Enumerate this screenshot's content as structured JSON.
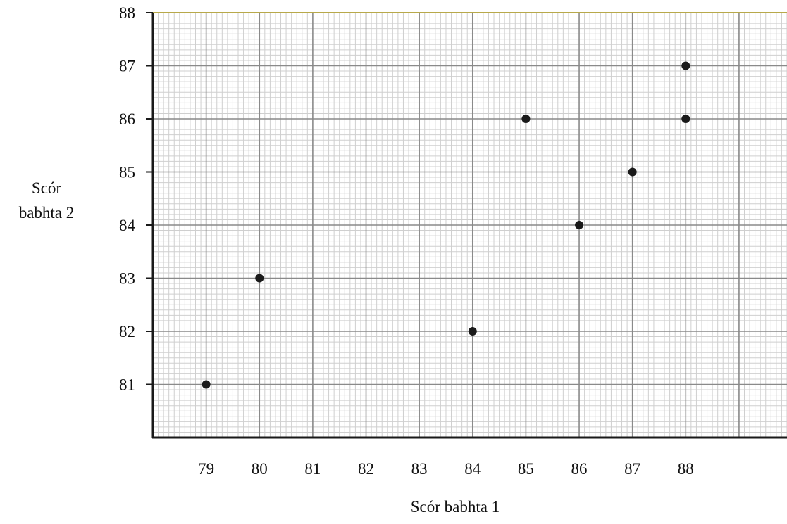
{
  "chart_data": {
    "type": "scatter",
    "title": "",
    "xlabel": "Scór babhta 1",
    "ylabel_lines": [
      "Scór",
      "babhta 2"
    ],
    "x_ticks": [
      79,
      80,
      81,
      82,
      83,
      84,
      85,
      86,
      87,
      88
    ],
    "y_ticks": [
      81,
      82,
      83,
      84,
      85,
      86,
      87,
      88
    ],
    "xlim": [
      78,
      89.9
    ],
    "ylim": [
      80,
      88
    ],
    "grid": true,
    "series": [
      {
        "points": [
          {
            "x": 79,
            "y": 81
          },
          {
            "x": 80,
            "y": 83
          },
          {
            "x": 84,
            "y": 82
          },
          {
            "x": 85,
            "y": 86
          },
          {
            "x": 86,
            "y": 84
          },
          {
            "x": 87,
            "y": 85
          },
          {
            "x": 88,
            "y": 86
          },
          {
            "x": 88,
            "y": 87
          }
        ]
      }
    ],
    "colors": {
      "point": "#1a1a1a",
      "axis": "#1a1a1a",
      "major_grid": "#8a8a8a",
      "minor_grid": "#cfcfcf",
      "top_border": "#b8a94a"
    }
  }
}
